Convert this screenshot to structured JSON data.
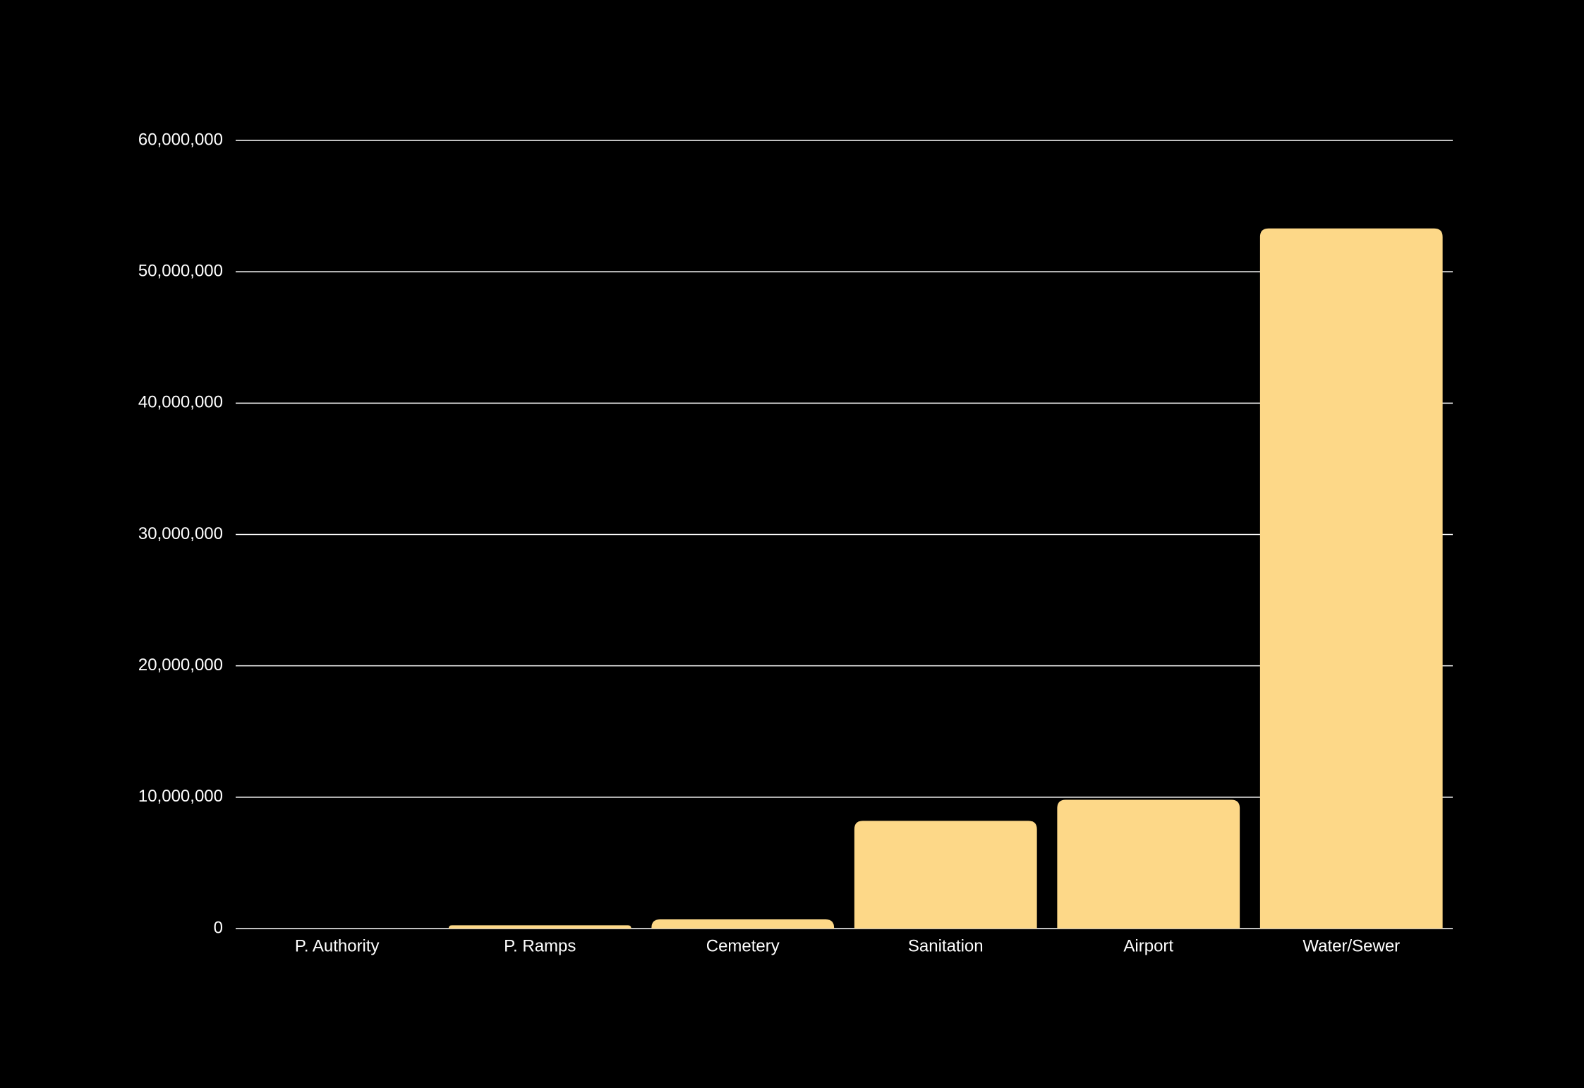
{
  "chart_data": {
    "type": "bar",
    "categories": [
      "P. Authority",
      "P. Ramps",
      "Cemetery",
      "Sanitation",
      "Airport",
      "Water/Sewer"
    ],
    "values": [
      0,
      250000,
      700000,
      8200000,
      9800000,
      53300000
    ],
    "color": "#fdd888",
    "ylim": [
      0,
      60000000
    ],
    "yticks": [
      0,
      {
        "value": 10000000,
        "label": "10,000,000"
      },
      {
        "value": 20000000,
        "label": "20,000,000"
      },
      {
        "value": 30000000,
        "label": "30,000,000"
      },
      {
        "value": 40000000,
        "label": "40,000,000"
      },
      {
        "value": 50000000,
        "label": "50,000,000"
      },
      {
        "value": 60000000,
        "label": "60,000,000"
      }
    ],
    "grid": true
  }
}
